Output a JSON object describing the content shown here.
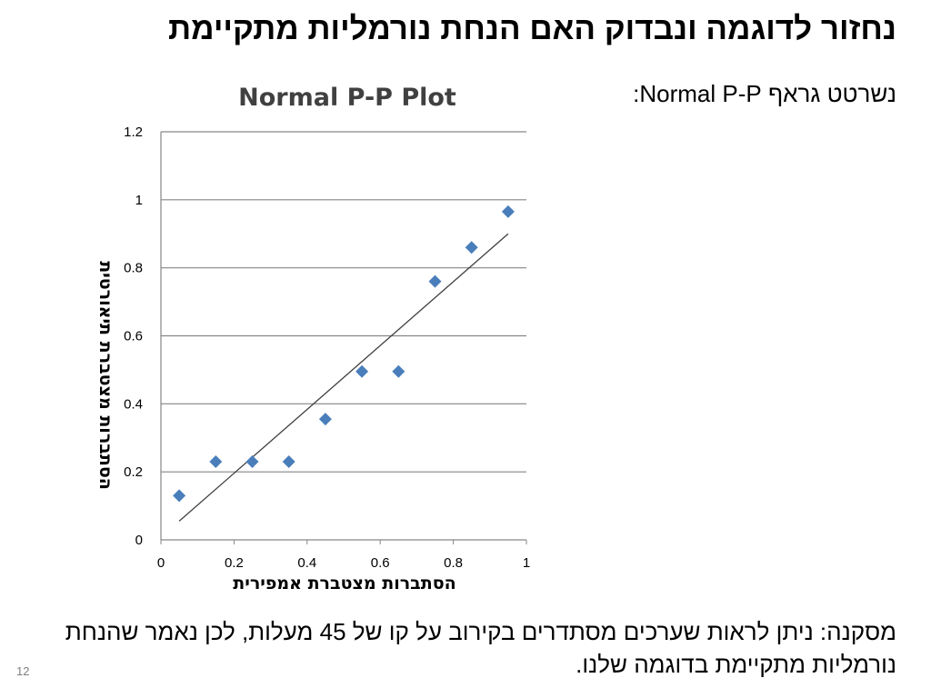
{
  "slide": {
    "title": "נחזור לדוגמה ונבדוק האם הנחת נורמליות מתקיימת",
    "pp_caption": "נשרטט גראף Normal P-P:",
    "conclusion": "מסקנה: ניתן לראות שערכים מסתדרים בקירוב על קו של 45 מעלות, לכן נאמר שהנחת נורמליות מתקיימת בדוגמה שלנו.",
    "page_number": "12"
  },
  "chart_data": {
    "type": "scatter",
    "title": "Normal P-P Plot",
    "xlabel": "הסתברות מצטברת אמפירית",
    "ylabel": "הסתברות מצטברת תיאורטית",
    "xlim": [
      0,
      1
    ],
    "ylim": [
      0,
      1.2
    ],
    "x_ticks": [
      "0",
      "0.2",
      "0.4",
      "0.6",
      "0.8",
      "1"
    ],
    "y_ticks": [
      "0",
      "0.2",
      "0.4",
      "0.6",
      "0.8",
      "1",
      "1.2"
    ],
    "grid": "horizontal",
    "marker": "diamond",
    "point_color": "#4a7ebb",
    "line_color": "#404040",
    "points": [
      {
        "x": 0.05,
        "y": 0.13
      },
      {
        "x": 0.15,
        "y": 0.23
      },
      {
        "x": 0.25,
        "y": 0.23
      },
      {
        "x": 0.35,
        "y": 0.23
      },
      {
        "x": 0.45,
        "y": 0.355
      },
      {
        "x": 0.55,
        "y": 0.495
      },
      {
        "x": 0.65,
        "y": 0.495
      },
      {
        "x": 0.75,
        "y": 0.76
      },
      {
        "x": 0.85,
        "y": 0.86
      },
      {
        "x": 0.95,
        "y": 0.965
      }
    ],
    "reference_line": [
      {
        "x": 0.05,
        "y": 0.055
      },
      {
        "x": 0.95,
        "y": 0.9
      }
    ]
  }
}
